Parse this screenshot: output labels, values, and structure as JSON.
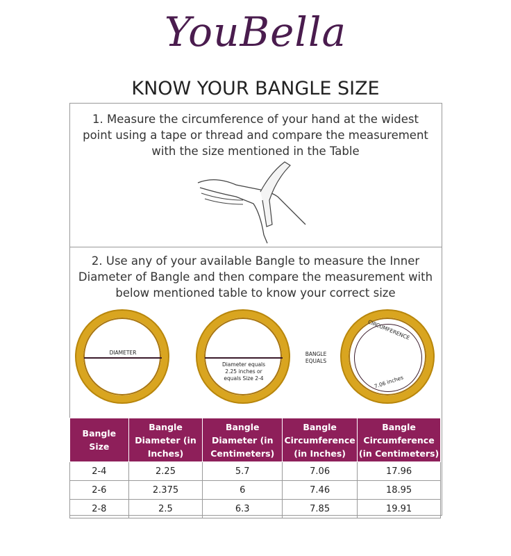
{
  "brand": {
    "logo_text": "YouBella"
  },
  "title": "KNOW YOUR BANGLE SIZE",
  "step1": "1. Measure the circumference of your hand at the widest point using a tape or thread and compare the measurement with the size mentioned in the Table",
  "step2": "2. Use any of your available Bangle to measure the Inner Diameter of Bangle and  then compare the measurement with below  mentioned table to know your correct size",
  "diagram": {
    "diameter_label": "DIAMETER",
    "diameter_note": "Diameter equals 2.25 inches or equals Size 2-4",
    "equals_label": "BANGLE EQUALS",
    "circumference_label": "CIRCUMFERENCE",
    "circumference_value": "7.06 inches"
  },
  "table": {
    "headers": [
      "Bangle Size",
      "Bangle Diameter (in Inches)",
      "Bangle Diameter (in Centimeters)",
      "Bangle Circumference (in Inches)",
      "Bangle Circumference (in Centimeters)"
    ],
    "rows": [
      [
        "2-4",
        "2.25",
        "5.7",
        "7.06",
        "17.96"
      ],
      [
        "2-6",
        "2.375",
        "6",
        "7.46",
        "18.95"
      ],
      [
        "2-8",
        "2.5",
        "6.3",
        "7.85",
        "19.91"
      ]
    ]
  },
  "colors": {
    "header": "#8e1f5a",
    "logo": "#4a1c4e",
    "gold": "#d9a520"
  }
}
